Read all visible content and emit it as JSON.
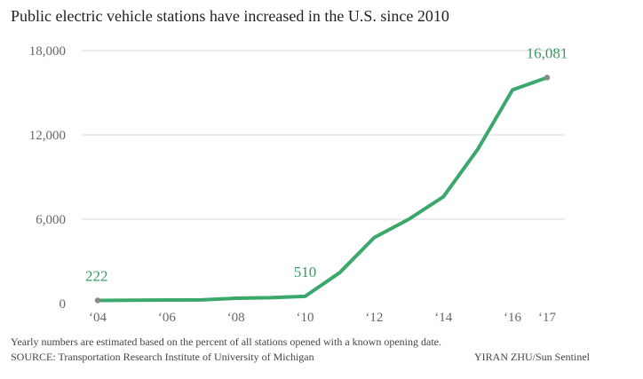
{
  "chart_data": {
    "type": "line",
    "title": "Public electric vehicle stations have increased in the U.S. since 2010",
    "xlabel": "",
    "ylabel": "",
    "x": [
      2004,
      2005,
      2006,
      2007,
      2008,
      2009,
      2010,
      2011,
      2012,
      2013,
      2014,
      2015,
      2016,
      2017
    ],
    "series": [
      {
        "values": [
          222,
          240,
          250,
          260,
          380,
          420,
          510,
          2200,
          4700,
          6000,
          7600,
          11000,
          15200,
          16081
        ]
      }
    ],
    "ylim": [
      0,
      18000
    ],
    "yticks": [
      0,
      6000,
      12000,
      18000
    ],
    "ytick_labels": [
      "0",
      "6,000",
      "12,000",
      "18,000"
    ],
    "xticks": [
      2004,
      2006,
      2008,
      2010,
      2012,
      2014,
      2016,
      2017
    ],
    "xtick_labels": [
      "‘04",
      "‘06",
      "‘08",
      "‘10",
      "‘12",
      "‘14",
      "‘16",
      "‘17"
    ],
    "annotations": [
      {
        "x": 2004,
        "text": "222"
      },
      {
        "x": 2010,
        "text": "510"
      },
      {
        "x": 2017,
        "text": "16,081"
      }
    ],
    "grid": true,
    "legend": "none",
    "colors": {
      "line": "#3aa86b",
      "annotation": "#3a9a63",
      "grid": "#d9d9d9",
      "endpoint": "#8a8a8a"
    }
  },
  "footer": {
    "note": "Yearly numbers are estimated based on the percent of all stations opened with a known opening date.",
    "source": "SOURCE: Transportation Research Institute of University of Michigan",
    "credit": "YIRAN ZHU/Sun Sentinel"
  }
}
